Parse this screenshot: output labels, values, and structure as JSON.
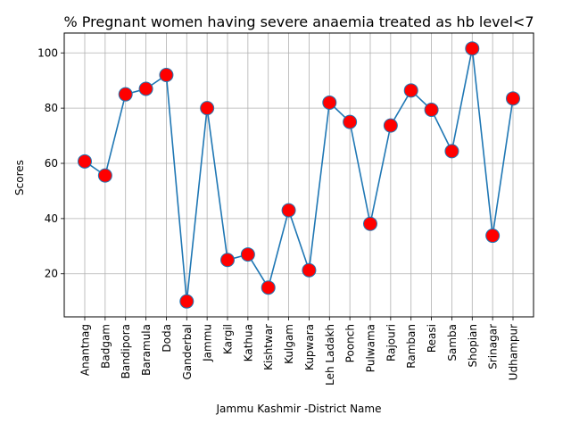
{
  "chart_data": {
    "type": "line",
    "title": "% Pregnant women having severe anaemia treated as hb level<7",
    "xlabel": "Jammu Kashmir -District Name",
    "ylabel": "Scores",
    "categories": [
      "Anantnag",
      "Badgam",
      "Bandipora",
      "Baramula",
      "Doda",
      "Ganderbal",
      "Jammu",
      "Kargil",
      "Kathua",
      "Kishtwar",
      "Kulgam",
      "Kupwara",
      "Leh Ladakh",
      "Poonch",
      "Pulwama",
      "Rajouri",
      "Ramban",
      "Reasi",
      "Samba",
      "Shopian",
      "Srinagar",
      "Udhampur"
    ],
    "values": [
      60.7,
      55.6,
      85.0,
      87.0,
      92.0,
      10.0,
      80.0,
      25.0,
      27.0,
      15.0,
      43.0,
      21.3,
      82.0,
      75.0,
      38.1,
      73.7,
      86.4,
      79.4,
      64.4,
      101.6,
      33.8,
      83.5
    ],
    "ylim": [
      4.4,
      107.2
    ],
    "yticks": [
      20,
      40,
      60,
      80,
      100
    ],
    "grid": true,
    "line_color": "#1f77b4",
    "marker_color": "#ff0000",
    "marker_edge_color": "#1f77b4"
  }
}
